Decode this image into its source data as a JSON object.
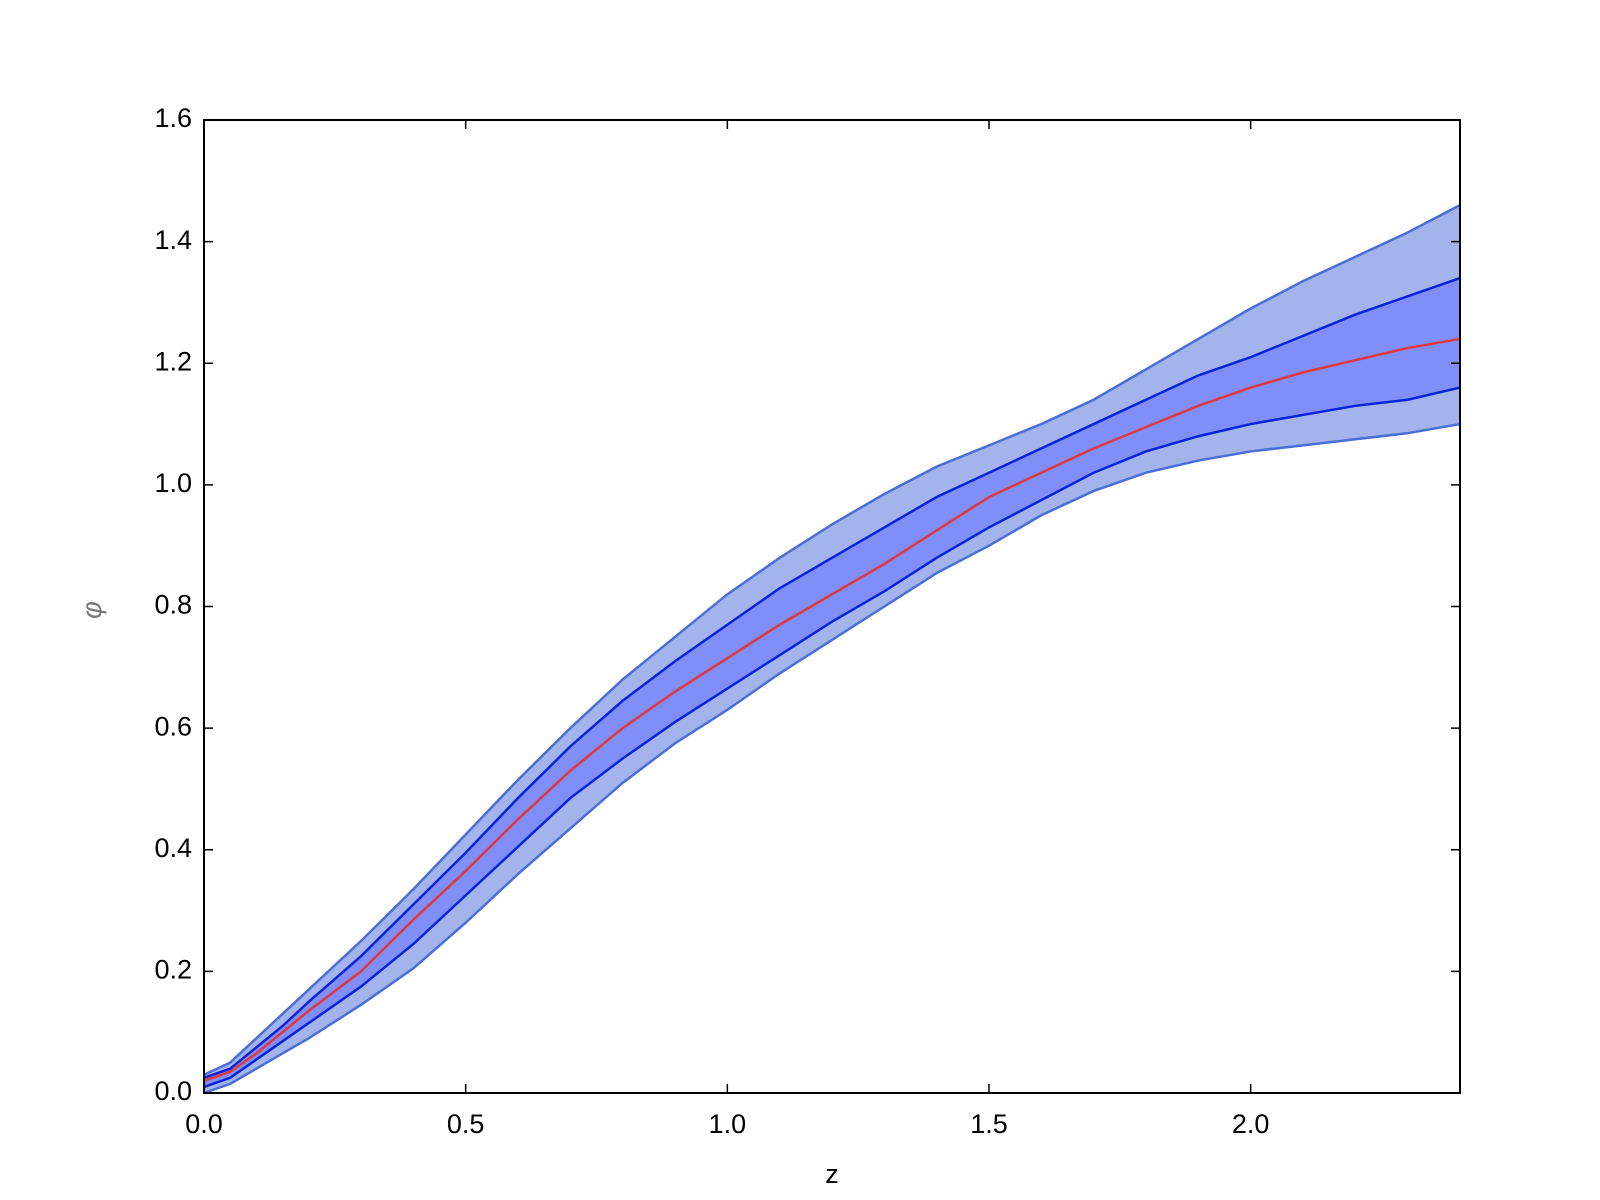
{
  "chart_data": {
    "type": "band",
    "x_label": "z",
    "y_label": "φ",
    "x": [
      0,
      0.05,
      0.1,
      0.15,
      0.2,
      0.3,
      0.4,
      0.5,
      0.6,
      0.7,
      0.8,
      0.9,
      1.0,
      1.1,
      1.2,
      1.3,
      1.4,
      1.5,
      1.6,
      1.7,
      1.8,
      1.9,
      2.0,
      2.1,
      2.2,
      2.3,
      2.4
    ],
    "bands": [
      {
        "color": "#a3b4ec",
        "edge_color": "#4a6ed6",
        "upper": [
          0.03,
          0.05,
          0.09,
          0.13,
          0.17,
          0.25,
          0.335,
          0.425,
          0.515,
          0.6,
          0.68,
          0.75,
          0.82,
          0.88,
          0.935,
          0.985,
          1.03,
          1.065,
          1.1,
          1.14,
          1.19,
          1.24,
          1.29,
          1.335,
          1.375,
          1.415,
          1.46
        ],
        "lower": [
          0.0,
          0.015,
          0.04,
          0.065,
          0.09,
          0.145,
          0.205,
          0.28,
          0.36,
          0.435,
          0.51,
          0.575,
          0.63,
          0.69,
          0.745,
          0.8,
          0.855,
          0.9,
          0.95,
          0.99,
          1.02,
          1.04,
          1.055,
          1.065,
          1.075,
          1.085,
          1.1
        ]
      },
      {
        "color": "#7f8ff7",
        "edge_color": "#0a22d8",
        "upper": [
          0.025,
          0.04,
          0.075,
          0.11,
          0.15,
          0.225,
          0.31,
          0.395,
          0.485,
          0.57,
          0.645,
          0.71,
          0.77,
          0.83,
          0.88,
          0.93,
          0.98,
          1.02,
          1.06,
          1.1,
          1.14,
          1.18,
          1.21,
          1.245,
          1.28,
          1.31,
          1.34
        ],
        "lower": [
          0.01,
          0.025,
          0.055,
          0.085,
          0.115,
          0.175,
          0.245,
          0.325,
          0.405,
          0.485,
          0.55,
          0.61,
          0.665,
          0.72,
          0.775,
          0.825,
          0.88,
          0.93,
          0.975,
          1.02,
          1.055,
          1.08,
          1.1,
          1.115,
          1.13,
          1.14,
          1.16
        ]
      }
    ],
    "series": [
      {
        "color": "#e0373a",
        "values": [
          0.02,
          0.035,
          0.065,
          0.1,
          0.135,
          0.2,
          0.285,
          0.365,
          0.45,
          0.53,
          0.6,
          0.66,
          0.715,
          0.77,
          0.82,
          0.87,
          0.925,
          0.98,
          1.02,
          1.06,
          1.095,
          1.13,
          1.16,
          1.185,
          1.205,
          1.225,
          1.24
        ]
      }
    ],
    "xlim": [
      0,
      2.4
    ],
    "ylim": [
      0,
      1.6
    ],
    "xticks": [
      {
        "value": 0,
        "label": "0.0"
      },
      {
        "value": 0.5,
        "label": "0.5"
      },
      {
        "value": 1.0,
        "label": "1.0"
      },
      {
        "value": 1.5,
        "label": "1.5"
      },
      {
        "value": 2.0,
        "label": "2.0"
      }
    ],
    "yticks": [
      {
        "value": 0,
        "label": "0.0"
      },
      {
        "value": 0.2,
        "label": "0.2"
      },
      {
        "value": 0.4,
        "label": "0.4"
      },
      {
        "value": 0.6,
        "label": "0.6"
      },
      {
        "value": 0.8,
        "label": "0.8"
      },
      {
        "value": 1.0,
        "label": "1.0"
      },
      {
        "value": 1.2,
        "label": "1.2"
      },
      {
        "value": 1.4,
        "label": "1.4"
      },
      {
        "value": 1.6,
        "label": "1.6"
      }
    ],
    "grid": false
  }
}
